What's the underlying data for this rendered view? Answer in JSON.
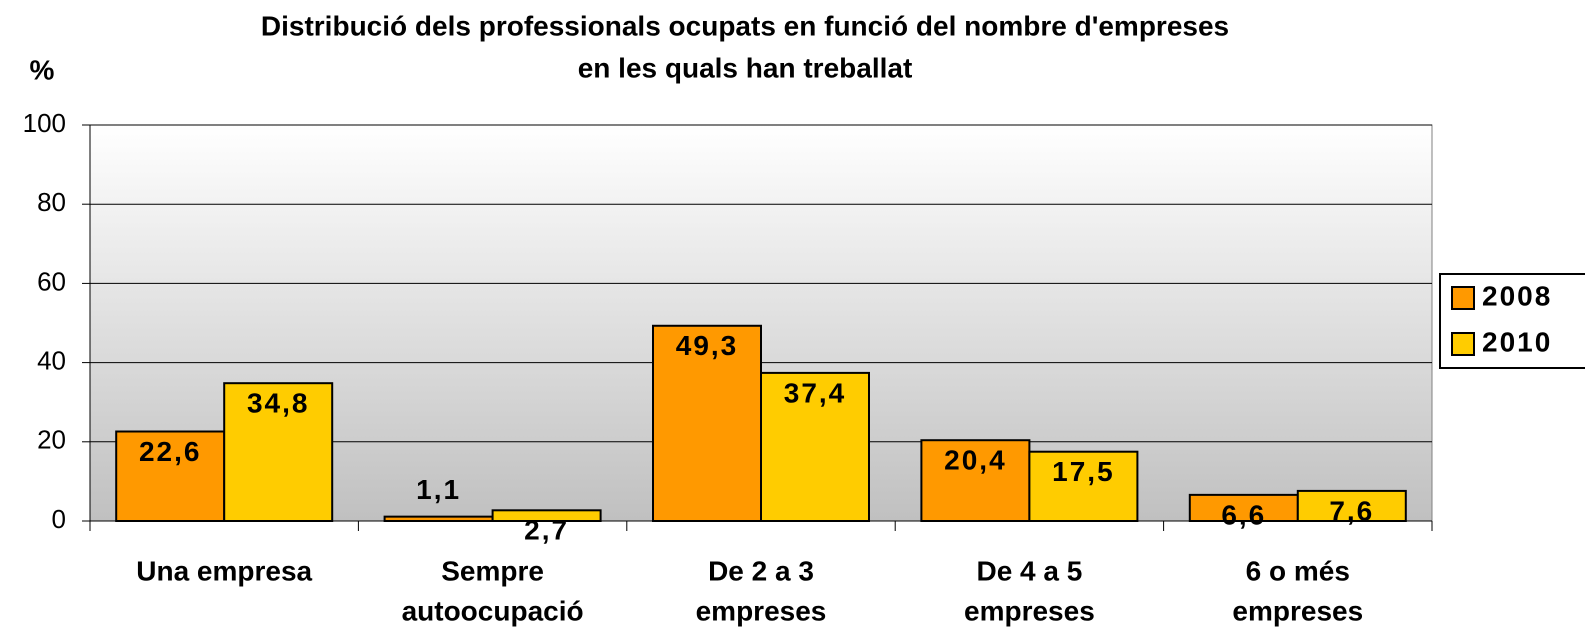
{
  "chart_data": {
    "type": "bar",
    "title": [
      "Distribució dels professionals ocupats en funció del nombre d'empreses",
      "en les quals han treballat"
    ],
    "y_label": "%",
    "categories": [
      [
        "Una empresa"
      ],
      [
        "Sempre",
        "autoocupació"
      ],
      [
        "De 2 a 3",
        "empreses"
      ],
      [
        "De 4 a 5",
        "empreses"
      ],
      [
        "6 o més",
        "empreses"
      ]
    ],
    "series": [
      {
        "name": "2008",
        "color": "#ff9900",
        "values": [
          22.6,
          1.1,
          49.3,
          20.4,
          6.6
        ],
        "value_labels": [
          "22,6",
          "1,1",
          "49,3",
          "20,4",
          "6,6"
        ]
      },
      {
        "name": "2010",
        "color": "#ffcc00",
        "values": [
          34.8,
          2.7,
          37.4,
          17.5,
          7.6
        ],
        "value_labels": [
          "34,8",
          "2,7",
          "37,4",
          "17,5",
          "7,6"
        ]
      }
    ],
    "ylim": [
      0,
      100
    ],
    "yticks": [
      0,
      20,
      40,
      60,
      80,
      100
    ],
    "grid": true,
    "legend": "right"
  }
}
